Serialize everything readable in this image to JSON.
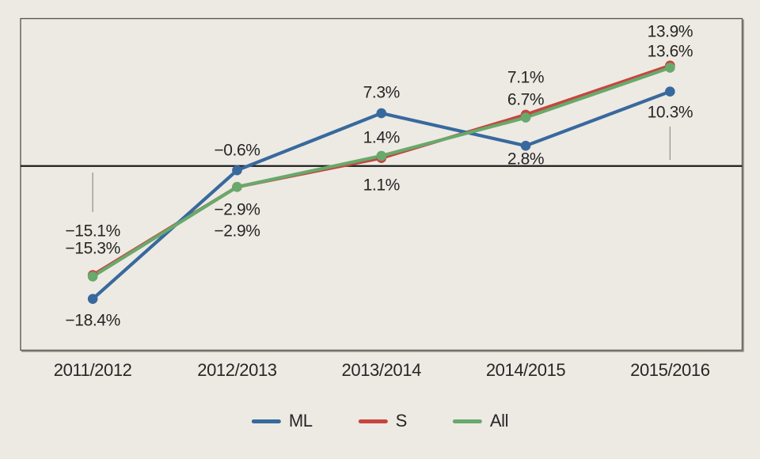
{
  "chart_data": {
    "type": "line",
    "title": "",
    "xlabel": "",
    "ylabel": "",
    "unit": "%",
    "categories": [
      "2011/2012",
      "2012/2013",
      "2013/2014",
      "2014/2015",
      "2015/2016"
    ],
    "series": [
      {
        "name": "ML",
        "color": "#38699E",
        "values": [
          -18.4,
          -0.6,
          7.3,
          2.8,
          10.3
        ],
        "point_labels": [
          "−18.4%",
          "−0.6%",
          "7.3%",
          "2.8%",
          "10.3%"
        ]
      },
      {
        "name": "S",
        "color": "#C8443E",
        "values": [
          -15.1,
          -2.9,
          1.1,
          7.1,
          13.9
        ],
        "point_labels": [
          "−15.1%",
          "−2.9%",
          "1.1%",
          "7.1%",
          "13.9%"
        ]
      },
      {
        "name": "All",
        "color": "#68A96C",
        "values": [
          -15.3,
          -2.9,
          1.4,
          6.7,
          13.6
        ],
        "point_labels": [
          "−15.3%",
          "−2.9%",
          "1.4%",
          "6.7%",
          "13.6%"
        ]
      }
    ],
    "baseline": 0,
    "ylim": [
      -25.5,
      20.4
    ],
    "grid": false,
    "legend_position": "bottom"
  },
  "colors": {
    "background": "#EDEAE3",
    "plot_border": "#56504A",
    "plot_border_shadow": "#918C85",
    "zero_line": "#1C1C1C",
    "label_text": "#262626",
    "leader_line": "#8F8F8B"
  }
}
